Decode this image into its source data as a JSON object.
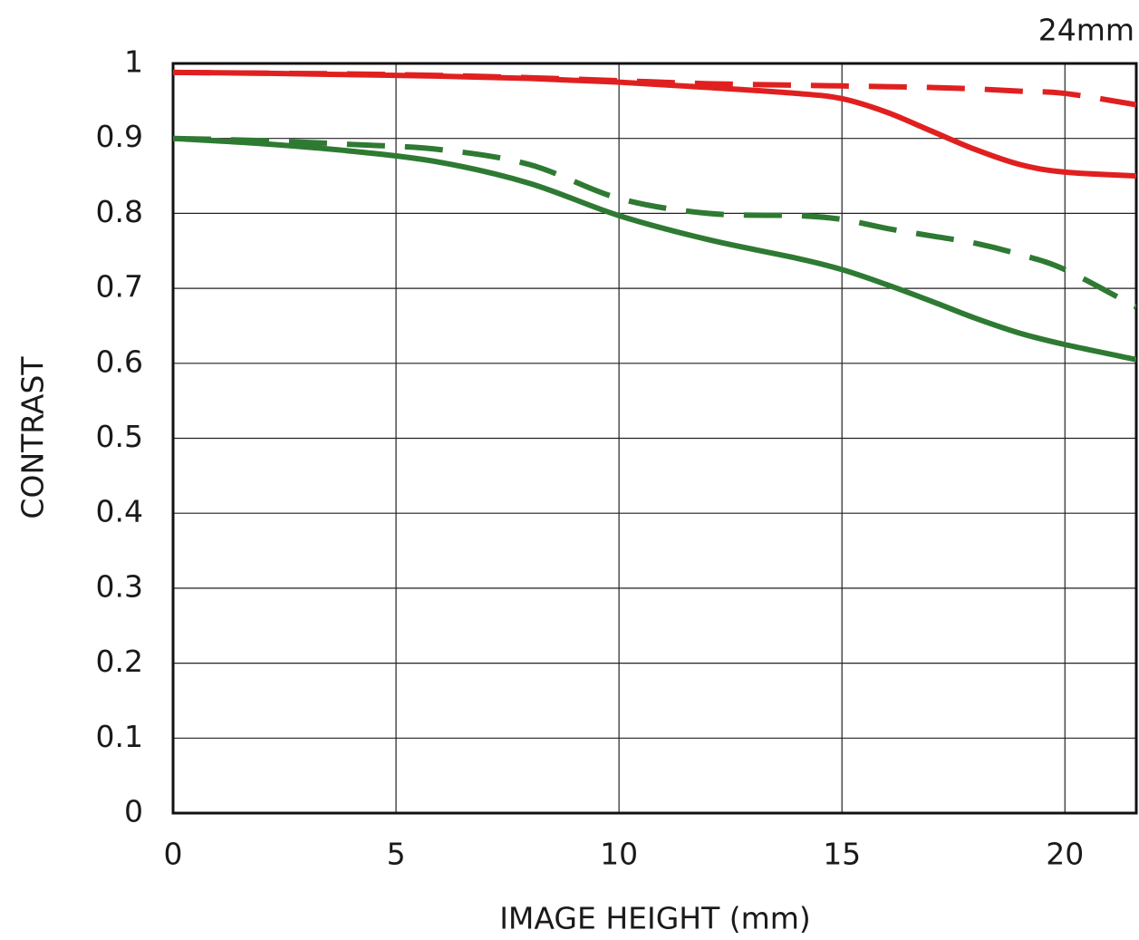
{
  "chart_data": {
    "type": "line",
    "annotation": "24mm",
    "xlabel": "IMAGE HEIGHT (mm)",
    "ylabel": "CONTRAST",
    "x": [
      0,
      2,
      4,
      6,
      8,
      10,
      12,
      14,
      15,
      16,
      17,
      18,
      19,
      20,
      21.6
    ],
    "series": [
      {
        "color": "#e02020",
        "dashed": false,
        "values": [
          0.988,
          0.987,
          0.985,
          0.983,
          0.98,
          0.975,
          0.968,
          0.96,
          0.953,
          0.935,
          0.91,
          0.885,
          0.865,
          0.855,
          0.85
        ]
      },
      {
        "color": "#e02020",
        "dashed": true,
        "values": [
          0.988,
          0.987,
          0.986,
          0.984,
          0.981,
          0.977,
          0.973,
          0.971,
          0.97,
          0.969,
          0.968,
          0.966,
          0.963,
          0.96,
          0.945
        ]
      },
      {
        "color": "#2e7a32",
        "dashed": false,
        "values": [
          0.9,
          0.893,
          0.883,
          0.868,
          0.84,
          0.797,
          0.765,
          0.74,
          0.725,
          0.705,
          0.683,
          0.66,
          0.64,
          0.625,
          0.605
        ]
      },
      {
        "color": "#2e7a32",
        "dashed": true,
        "values": [
          0.9,
          0.897,
          0.892,
          0.885,
          0.865,
          0.82,
          0.8,
          0.797,
          0.792,
          0.78,
          0.77,
          0.76,
          0.745,
          0.725,
          0.675
        ]
      }
    ],
    "xlim": [
      0,
      21.6
    ],
    "xticks": [
      0,
      5,
      10,
      15,
      20
    ],
    "ylim": [
      0,
      1
    ],
    "yticks": [
      0,
      0.1,
      0.2,
      0.3,
      0.4,
      0.5,
      0.6,
      0.7,
      0.8,
      0.9,
      1
    ],
    "grid": true
  }
}
